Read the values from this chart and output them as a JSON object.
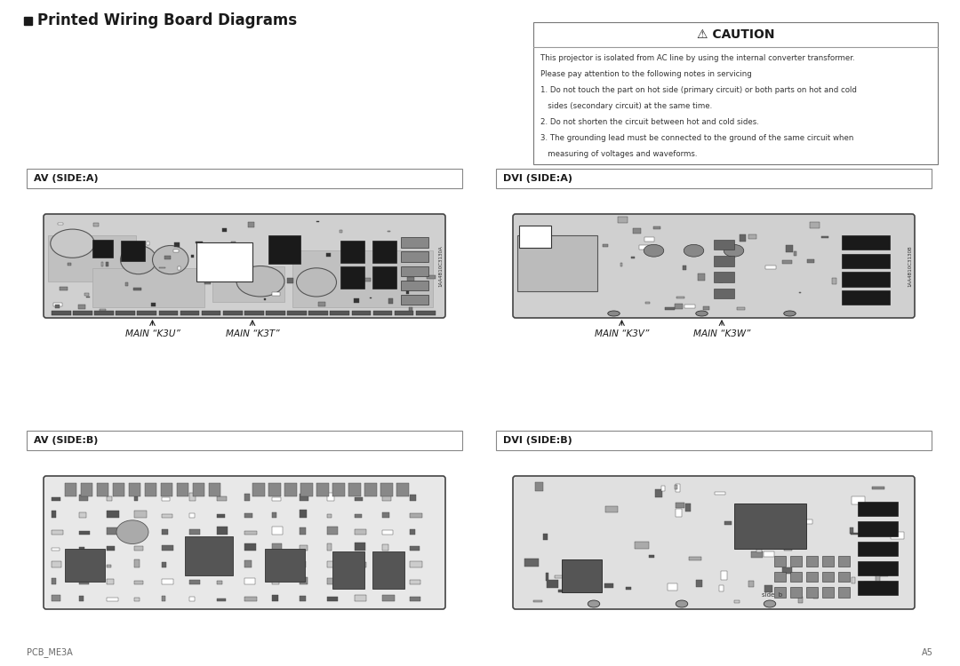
{
  "title": "Printed Wiring Board Diagrams",
  "caution_title": "⚠ CAUTION",
  "caution_line1": "This projector is isolated from AC line by using the internal converter transformer.",
  "caution_line2": "Please pay attention to the following notes in servicing",
  "caution_line3": "1. Do not touch the part on hot side (primary circuit) or both parts on hot and cold",
  "caution_line4": "   sides (secondary circuit) at the same time.",
  "caution_line5": "2. Do not shorten the circuit between hot and cold sides.",
  "caution_line6": "3. The grounding lead must be connected to the ground of the same circuit when",
  "caution_line7": "   measuring of voltages and waveforms.",
  "panels": [
    {
      "label": "AV (SIDE:A)",
      "col": 0,
      "row": 0,
      "caption_left": "MAIN “K3U”",
      "caption_right": "MAIN “K3T”",
      "pcb_style": "av_a"
    },
    {
      "label": "DVI (SIDE:A)",
      "col": 1,
      "row": 0,
      "caption_left": "MAIN “K3V”",
      "caption_right": "MAIN “K3W”",
      "pcb_style": "dvi_a"
    },
    {
      "label": "AV (SIDE:B)",
      "col": 0,
      "row": 1,
      "caption_left": "",
      "caption_right": "",
      "pcb_style": "av_b"
    },
    {
      "label": "DVI (SIDE:B)",
      "col": 1,
      "row": 1,
      "caption_left": "",
      "caption_right": "",
      "pcb_style": "dvi_b"
    }
  ],
  "footer_left": "PCB_ME3A",
  "footer_right": "A5",
  "bg_color": "#ffffff",
  "text_color": "#1a1a1a",
  "label_bar_top_color": "#e8e8e8",
  "label_bar_bottom_color": "#d0d0d0",
  "pcb_bg_av_a": "#d4d4d4",
  "pcb_bg_dvi_a": "#d4d4d4",
  "pcb_bg_av_b": "#f0f0f0",
  "pcb_bg_dvi_b": "#f0f0f0"
}
